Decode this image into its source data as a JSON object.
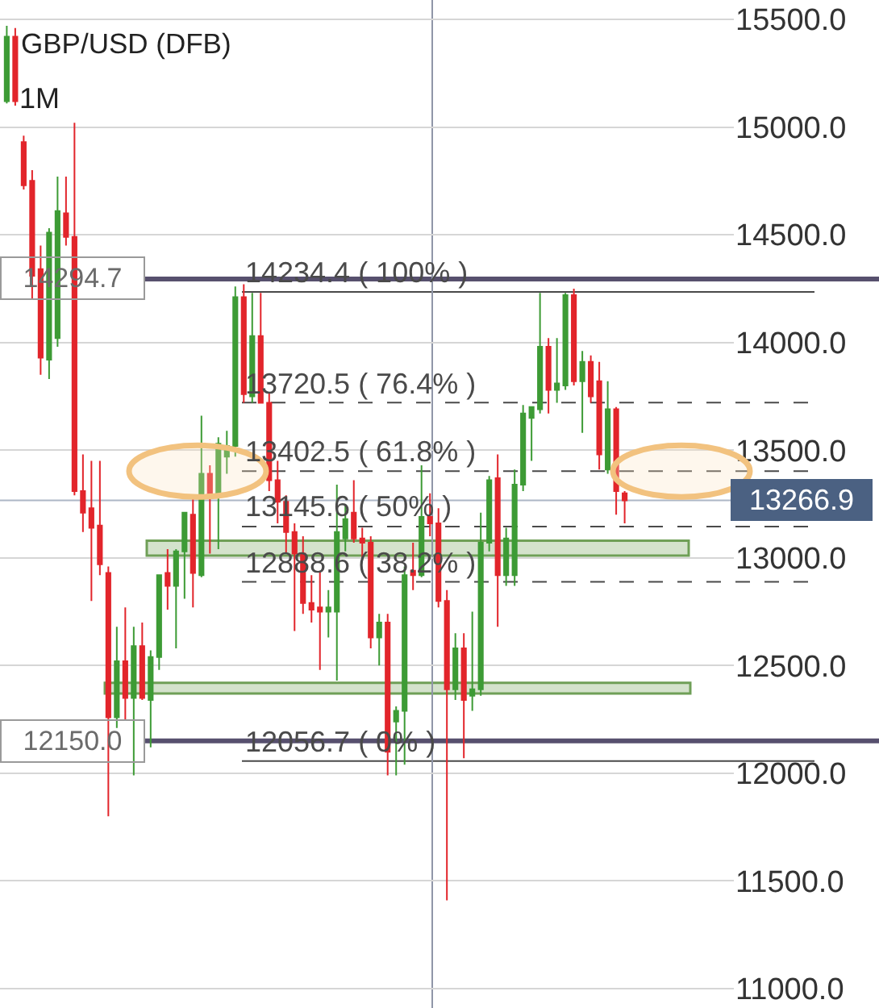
{
  "chart_data": {
    "type": "candlestick",
    "title": "GBP/USD (DFB)",
    "subtitle": "1M",
    "categories": [
      null,
      null,
      null,
      null,
      null,
      null,
      null,
      null,
      null,
      null,
      null,
      null,
      null,
      null,
      null,
      null,
      null,
      null,
      null,
      null,
      null,
      null,
      null,
      null,
      null,
      null,
      null,
      null,
      null,
      null,
      null,
      null,
      null,
      null,
      null,
      null,
      null,
      null,
      null,
      null,
      null,
      null,
      null,
      null,
      null,
      null,
      null,
      null,
      null,
      null,
      null,
      null,
      null,
      null,
      null,
      null,
      null,
      null,
      null,
      null,
      null,
      null,
      null,
      null,
      null,
      null,
      null,
      null,
      null,
      null,
      null,
      null,
      null,
      null
    ],
    "ohlc": [
      [
        15120,
        15470,
        15110,
        15420
      ],
      [
        15420,
        15460,
        15100,
        15120
      ],
      [
        14930,
        14960,
        14710,
        14730
      ],
      [
        14750,
        14800,
        14200,
        14310
      ],
      [
        14340,
        14450,
        13850,
        13930
      ],
      [
        13920,
        14530,
        13830,
        14510
      ],
      [
        14020,
        14770,
        13980,
        14610
      ],
      [
        14600,
        14770,
        14450,
        14490
      ],
      [
        14490,
        15020,
        13290,
        13310
      ],
      [
        13310,
        13480,
        13120,
        13210
      ],
      [
        13230,
        13450,
        12800,
        13140
      ],
      [
        13150,
        13450,
        12920,
        12970
      ],
      [
        12930,
        12960,
        11800,
        12260
      ],
      [
        12260,
        12680,
        12210,
        12520
      ],
      [
        12520,
        12770,
        12250,
        12350
      ],
      [
        12350,
        12680,
        11990,
        12590
      ],
      [
        12590,
        12700,
        12340,
        12350
      ],
      [
        12340,
        12570,
        12120,
        12540
      ],
      [
        12540,
        12920,
        12480,
        12920
      ],
      [
        12930,
        13040,
        12760,
        12870
      ],
      [
        12870,
        13040,
        12580,
        13030
      ],
      [
        13030,
        13210,
        12810,
        13210
      ],
      [
        13200,
        13290,
        12770,
        12930
      ],
      [
        12920,
        13660,
        12910,
        13390
      ],
      [
        13390,
        13430,
        13020,
        13300
      ],
      [
        13300,
        13560,
        13040,
        13530
      ],
      [
        13470,
        13590,
        13390,
        13520
      ],
      [
        13520,
        14260,
        13470,
        14210
      ],
      [
        14210,
        14270,
        13720,
        13760
      ],
      [
        13750,
        14230,
        13720,
        14030
      ],
      [
        14030,
        14230,
        13720,
        13720
      ],
      [
        13720,
        13770,
        13310,
        13360
      ],
      [
        13360,
        13450,
        13160,
        13260
      ],
      [
        13260,
        13290,
        13020,
        13120
      ],
      [
        13120,
        13160,
        12660,
        13020
      ],
      [
        13020,
        13100,
        12740,
        12790
      ],
      [
        12790,
        12920,
        12700,
        12760
      ],
      [
        12770,
        12940,
        12480,
        12750
      ],
      [
        12750,
        12850,
        12630,
        12770
      ],
      [
        12750,
        13340,
        12430,
        13120
      ],
      [
        13090,
        13250,
        13030,
        13180
      ],
      [
        13210,
        13360,
        13070,
        13090
      ],
      [
        13090,
        13140,
        12990,
        13070
      ],
      [
        13070,
        13100,
        12580,
        12630
      ],
      [
        12630,
        12740,
        12500,
        12700
      ],
      [
        12700,
        12740,
        11990,
        12100
      ],
      [
        12240,
        12310,
        11990,
        12290
      ],
      [
        12290,
        12960,
        12040,
        12920
      ],
      [
        12940,
        13070,
        12850,
        12920
      ],
      [
        12920,
        13430,
        12910,
        13190
      ],
      [
        13190,
        13300,
        13100,
        13160
      ],
      [
        13160,
        13230,
        12770,
        12800
      ],
      [
        12800,
        12850,
        11410,
        12390
      ],
      [
        12390,
        12650,
        12340,
        12580
      ],
      [
        12580,
        12650,
        12070,
        12340
      ],
      [
        12360,
        12750,
        12290,
        12390
      ],
      [
        12390,
        13210,
        12360,
        13070
      ],
      [
        13070,
        13380,
        13030,
        13360
      ],
      [
        13370,
        13480,
        12680,
        12920
      ],
      [
        12920,
        13140,
        12870,
        13090
      ],
      [
        12920,
        13410,
        12870,
        13340
      ],
      [
        13340,
        13710,
        13310,
        13670
      ],
      [
        13650,
        13700,
        13450,
        13700
      ],
      [
        13690,
        14230,
        13670,
        13980
      ],
      [
        13980,
        14020,
        13670,
        13780
      ],
      [
        13780,
        14020,
        13720,
        13810
      ],
      [
        13800,
        14230,
        13780,
        14220
      ],
      [
        14220,
        14250,
        13800,
        13820
      ],
      [
        13820,
        13960,
        13580,
        13910
      ],
      [
        13910,
        13940,
        13720,
        13750
      ],
      [
        13820,
        13910,
        13410,
        13480
      ],
      [
        13410,
        13820,
        13390,
        13690
      ],
      [
        13690,
        13700,
        13200,
        13310
      ],
      [
        13300,
        13310,
        13160,
        13266.9
      ]
    ],
    "colors": [
      "#3d9b35",
      "#e2252b",
      "#e2252b",
      "#e2252b",
      "#e2252b",
      "#3d9b35",
      "#3d9b35",
      "#e2252b",
      "#e2252b",
      "#e2252b",
      "#e2252b",
      "#e2252b",
      "#e2252b",
      "#3d9b35",
      "#e2252b",
      "#3d9b35",
      "#e2252b",
      "#3d9b35",
      "#3d9b35",
      "#e2252b",
      "#3d9b35",
      "#3d9b35",
      "#e2252b",
      "#3d9b35",
      "#e2252b",
      "#3d9b35",
      "#3d9b35",
      "#3d9b35",
      "#e2252b",
      "#3d9b35",
      "#e2252b",
      "#e2252b",
      "#e2252b",
      "#e2252b",
      "#e2252b",
      "#e2252b",
      "#e2252b",
      "#e2252b",
      "#3d9b35",
      "#3d9b35",
      "#3d9b35",
      "#e2252b",
      "#e2252b",
      "#e2252b",
      "#3d9b35",
      "#e2252b",
      "#3d9b35",
      "#3d9b35",
      "#e2252b",
      "#3d9b35",
      "#e2252b",
      "#e2252b",
      "#e2252b",
      "#3d9b35",
      "#e2252b",
      "#3d9b35",
      "#3d9b35",
      "#3d9b35",
      "#e2252b",
      "#3d9b35",
      "#3d9b35",
      "#3d9b35",
      "#3d9b35",
      "#3d9b35",
      "#e2252b",
      "#3d9b35",
      "#3d9b35",
      "#e2252b",
      "#3d9b35",
      "#e2252b",
      "#e2252b",
      "#3d9b35",
      "#e2252b",
      "#e2252b"
    ],
    "ylim": [
      10910,
      15590
    ],
    "yticks": [
      {
        "value": 11000,
        "label": "11000.0"
      },
      {
        "value": 11500,
        "label": "11500.0"
      },
      {
        "value": 12000,
        "label": "12000.0"
      },
      {
        "value": 12500,
        "label": "12500.0"
      },
      {
        "value": 13000,
        "label": "13000.0"
      },
      {
        "value": 13500,
        "label": "13500.0"
      },
      {
        "value": 14000,
        "label": "14000.0"
      },
      {
        "value": 14500,
        "label": "14500.0"
      },
      {
        "value": 15000,
        "label": "15000.0"
      },
      {
        "value": 15500,
        "label": "15500.0"
      }
    ],
    "ref_lines": [
      {
        "axis": "y",
        "value": 14294.7,
        "label": "14294.7",
        "color": "#57506e",
        "line_style": "solid"
      },
      {
        "axis": "y",
        "value": 12150.0,
        "label": "12150.0",
        "color": "#57506e",
        "line_style": "solid"
      },
      {
        "axis": "y",
        "value": 13266.9,
        "label": "13266.9",
        "color": "#4b6182",
        "line_style": "solid"
      },
      {
        "axis": "y",
        "value": 14234.4,
        "label": "14234.4 ( 100% )",
        "color": "#4a4a4a",
        "line_style": "solid"
      },
      {
        "axis": "y",
        "value": 13720.5,
        "label": "13720.5 ( 76.4% )",
        "color": "#4a4a4a",
        "line_style": "dashed"
      },
      {
        "axis": "y",
        "value": 13402.5,
        "label": "13402.5 ( 61.8% )",
        "color": "#4a4a4a",
        "line_style": "dashed"
      },
      {
        "axis": "y",
        "value": 13145.6,
        "label": "13145.6 ( 50% )",
        "color": "#4a4a4a",
        "line_style": "dashed"
      },
      {
        "axis": "y",
        "value": 12888.6,
        "label": "12888.6 ( 38.2% )",
        "color": "#4a4a4a",
        "line_style": "dashed"
      },
      {
        "axis": "y",
        "value": 12056.7,
        "label": "12056.7 ( 0% )",
        "color": "#4a4a4a",
        "line_style": "solid"
      }
    ],
    "bands": [
      {
        "axis": "y",
        "from": 13010,
        "to": 13080,
        "color": "#6f9f57"
      },
      {
        "axis": "y",
        "from": 12370,
        "to": 12420,
        "color": "#6f9f57"
      }
    ],
    "grid": "y",
    "tick_labels": "y"
  }
}
